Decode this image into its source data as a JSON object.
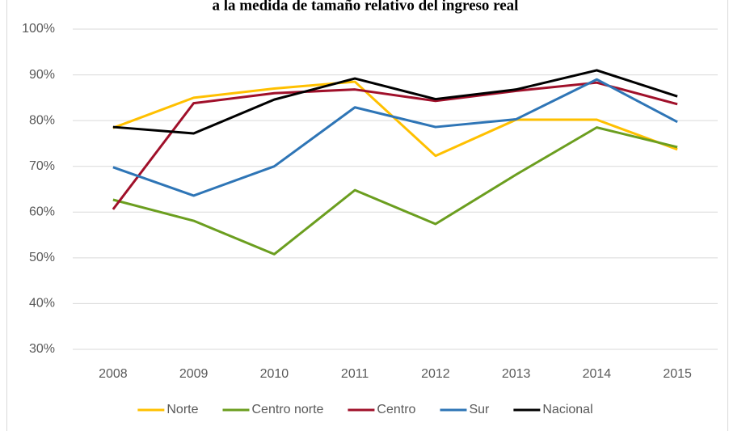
{
  "chart_data": {
    "type": "line",
    "title": "a la medida de tamaño relativo del ingreso real",
    "categories": [
      "2008",
      "2009",
      "2010",
      "2011",
      "2012",
      "2013",
      "2014",
      "2015"
    ],
    "series": [
      {
        "name": "Norte",
        "color": "#ffc000",
        "values": [
          78.4,
          85.0,
          87.0,
          88.5,
          72.3,
          80.2,
          80.2,
          73.7
        ]
      },
      {
        "name": "Centro norte",
        "color": "#6b9e1f",
        "values": [
          62.7,
          58.1,
          50.8,
          64.8,
          57.4,
          68.2,
          78.5,
          74.2
        ]
      },
      {
        "name": "Centro",
        "color": "#a0102a",
        "values": [
          60.6,
          83.8,
          86.0,
          86.8,
          84.3,
          86.5,
          88.3,
          83.6
        ]
      },
      {
        "name": "Sur",
        "color": "#2e75b6",
        "values": [
          69.8,
          63.6,
          70.0,
          82.9,
          78.6,
          80.3,
          89.0,
          79.7
        ]
      },
      {
        "name": "Nacional",
        "color": "#000000",
        "values": [
          78.6,
          77.2,
          84.6,
          89.2,
          84.7,
          86.8,
          91.0,
          85.3
        ]
      }
    ],
    "ylim": [
      30,
      100
    ],
    "yticks": [
      {
        "value": 30,
        "label": "30%"
      },
      {
        "value": 40,
        "label": "40%"
      },
      {
        "value": 50,
        "label": "50%"
      },
      {
        "value": 60,
        "label": "60%"
      },
      {
        "value": 70,
        "label": "70%"
      },
      {
        "value": 80,
        "label": "80%"
      },
      {
        "value": 90,
        "label": "90%"
      },
      {
        "value": 100,
        "label": "100%"
      }
    ],
    "grid": true,
    "legend": "bottom"
  }
}
